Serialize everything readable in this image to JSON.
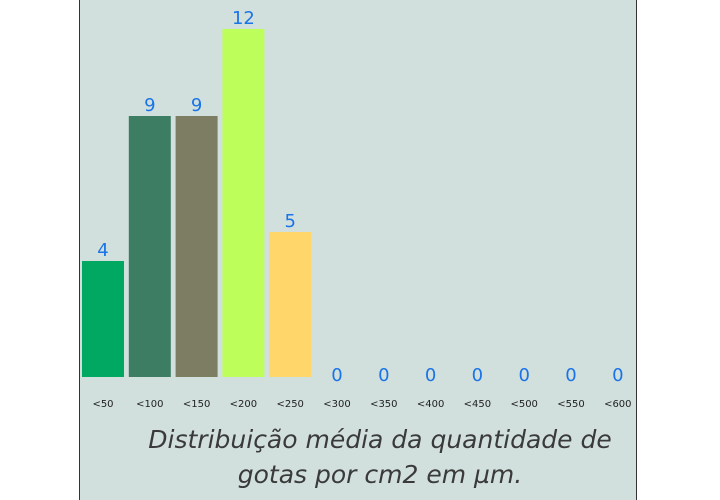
{
  "chart_data": {
    "type": "bar",
    "categories": [
      "<50",
      "<100",
      "<150",
      "<200",
      "<250",
      "<300",
      "<350",
      "<400",
      "<450",
      "<500",
      "<550",
      "<600"
    ],
    "values": [
      4,
      9,
      9,
      12,
      5,
      0,
      0,
      0,
      0,
      0,
      0,
      0
    ],
    "colors": [
      "#00a862",
      "#3c7d64",
      "#7d7d63",
      "#bdfe5b",
      "#ffd669",
      "#d1e0dd",
      "#d1e0dd",
      "#d1e0dd",
      "#d1e0dd",
      "#d1e0dd",
      "#d1e0dd",
      "#d1e0dd"
    ],
    "ylim": [
      0,
      12
    ],
    "grid": false,
    "value_label_color": "#1a73e8",
    "caption": "Distribuição média da quantidade de gotas por cm2 em µm."
  },
  "theme": {
    "panel_background": "#d1e0dd",
    "border_color": "#333333",
    "tick_label_color": "#222222",
    "caption_color": "#3a3a3a"
  }
}
